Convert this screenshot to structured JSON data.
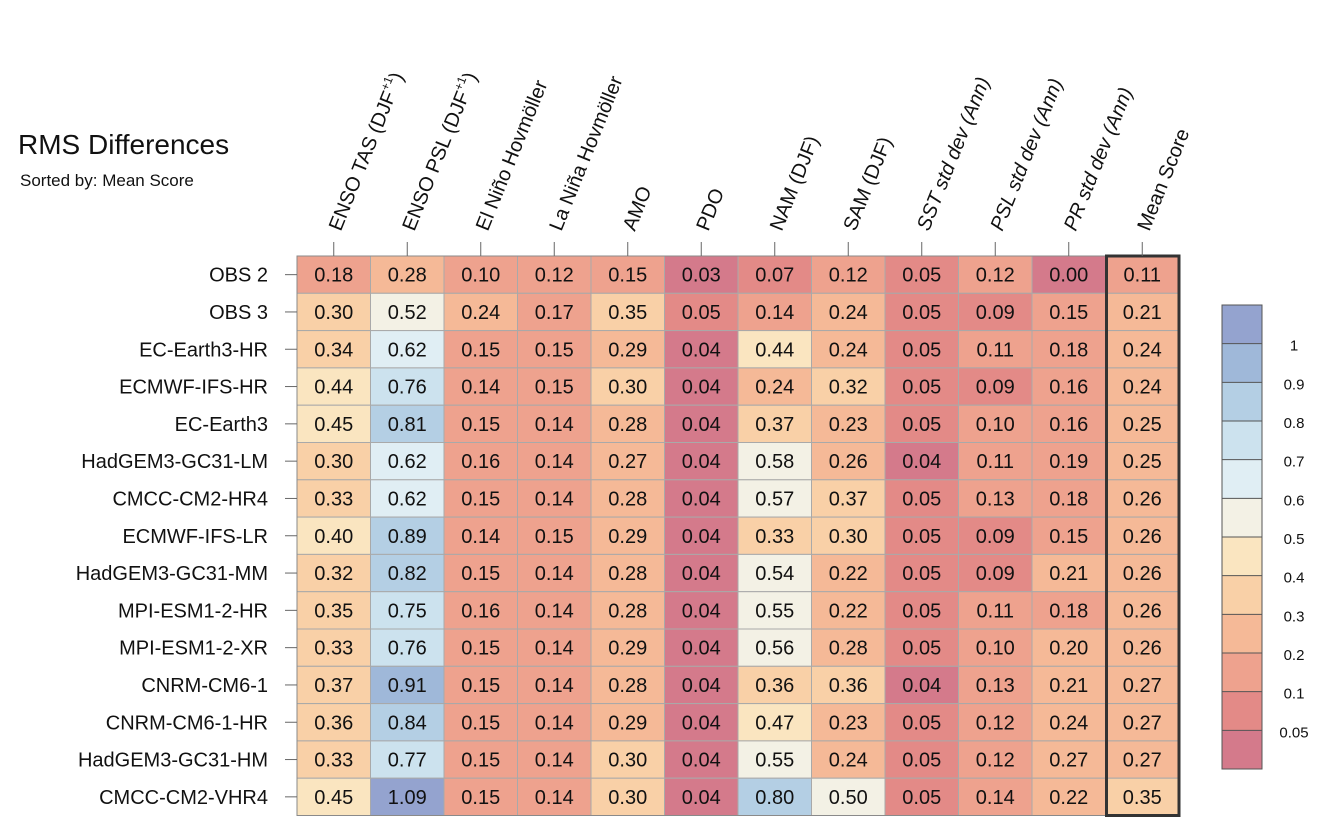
{
  "chart_data": {
    "type": "heatmap",
    "title": "RMS Differences",
    "subtitle": "Sorted by: Mean Score",
    "columns": [
      "ENSO TAS (DJF+1)",
      "ENSO PSL (DJF+1)",
      "El Niño Hovmöller",
      "La Niña Hovmöller",
      "AMO",
      "PDO",
      "NAM (DJF)",
      "SAM (DJF)",
      "SST std dev (Ann)",
      "PSL std dev (Ann)",
      "PR std dev (Ann)",
      "Mean Score"
    ],
    "column_labels": [
      {
        "main": "ENSO TAS (DJF",
        "sup": "+1",
        "end": ")",
        "italic": false
      },
      {
        "main": "ENSO PSL (DJF",
        "sup": "+1",
        "end": ")",
        "italic": false
      },
      {
        "main": "El Niño Hovmöller",
        "sup": "",
        "end": "",
        "italic": false
      },
      {
        "main": "La Niña Hovmöller",
        "sup": "",
        "end": "",
        "italic": false
      },
      {
        "main": "AMO",
        "sup": "",
        "end": "",
        "italic": false
      },
      {
        "main": "PDO",
        "sup": "",
        "end": "",
        "italic": false
      },
      {
        "main": "NAM (DJF)",
        "sup": "",
        "end": "",
        "italic": false
      },
      {
        "main": "SAM (DJF)",
        "sup": "",
        "end": "",
        "italic": false
      },
      {
        "main": "SST std dev (Ann)",
        "sup": "",
        "end": "",
        "italic": true
      },
      {
        "main": "PSL std dev (Ann)",
        "sup": "",
        "end": "",
        "italic": true
      },
      {
        "main": "PR std dev (Ann)",
        "sup": "",
        "end": "",
        "italic": true
      },
      {
        "main": "Mean Score",
        "sup": "",
        "end": "",
        "italic": false
      }
    ],
    "rows": [
      "OBS 2",
      "OBS 3",
      "EC-Earth3-HR",
      "ECMWF-IFS-HR",
      "EC-Earth3",
      "HadGEM3-GC31-LM",
      "CMCC-CM2-HR4",
      "ECMWF-IFS-LR",
      "HadGEM3-GC31-MM",
      "MPI-ESM1-2-HR",
      "MPI-ESM1-2-XR",
      "CNRM-CM6-1",
      "CNRM-CM6-1-HR",
      "HadGEM3-GC31-HM",
      "CMCC-CM2-VHR4"
    ],
    "values": [
      [
        0.18,
        0.28,
        0.1,
        0.12,
        0.15,
        0.03,
        0.07,
        0.12,
        0.05,
        0.12,
        0.0,
        0.11
      ],
      [
        0.3,
        0.52,
        0.24,
        0.17,
        0.35,
        0.05,
        0.14,
        0.24,
        0.05,
        0.09,
        0.15,
        0.21
      ],
      [
        0.34,
        0.62,
        0.15,
        0.15,
        0.29,
        0.04,
        0.44,
        0.24,
        0.05,
        0.11,
        0.18,
        0.24
      ],
      [
        0.44,
        0.76,
        0.14,
        0.15,
        0.3,
        0.04,
        0.24,
        0.32,
        0.05,
        0.09,
        0.16,
        0.24
      ],
      [
        0.45,
        0.81,
        0.15,
        0.14,
        0.28,
        0.04,
        0.37,
        0.23,
        0.05,
        0.1,
        0.16,
        0.25
      ],
      [
        0.3,
        0.62,
        0.16,
        0.14,
        0.27,
        0.04,
        0.58,
        0.26,
        0.04,
        0.11,
        0.19,
        0.25
      ],
      [
        0.33,
        0.62,
        0.15,
        0.14,
        0.28,
        0.04,
        0.57,
        0.37,
        0.05,
        0.13,
        0.18,
        0.26
      ],
      [
        0.4,
        0.89,
        0.14,
        0.15,
        0.29,
        0.04,
        0.33,
        0.3,
        0.05,
        0.09,
        0.15,
        0.26
      ],
      [
        0.32,
        0.82,
        0.15,
        0.14,
        0.28,
        0.04,
        0.54,
        0.22,
        0.05,
        0.09,
        0.21,
        0.26
      ],
      [
        0.35,
        0.75,
        0.16,
        0.14,
        0.28,
        0.04,
        0.55,
        0.22,
        0.05,
        0.11,
        0.18,
        0.26
      ],
      [
        0.33,
        0.76,
        0.15,
        0.14,
        0.29,
        0.04,
        0.56,
        0.28,
        0.05,
        0.1,
        0.2,
        0.26
      ],
      [
        0.37,
        0.91,
        0.15,
        0.14,
        0.28,
        0.04,
        0.36,
        0.36,
        0.04,
        0.13,
        0.21,
        0.27
      ],
      [
        0.36,
        0.84,
        0.15,
        0.14,
        0.29,
        0.04,
        0.47,
        0.23,
        0.05,
        0.12,
        0.24,
        0.27
      ],
      [
        0.33,
        0.77,
        0.15,
        0.14,
        0.3,
        0.04,
        0.55,
        0.24,
        0.05,
        0.12,
        0.27,
        0.27
      ],
      [
        0.45,
        1.09,
        0.15,
        0.14,
        0.3,
        0.04,
        0.8,
        0.5,
        0.05,
        0.14,
        0.22,
        0.35
      ]
    ],
    "colorbar": {
      "boundaries": [
        0.05,
        0.1,
        0.2,
        0.3,
        0.4,
        0.5,
        0.6,
        0.7,
        0.8,
        0.9,
        1
      ],
      "tick_labels": [
        "0.05",
        "0.1",
        "0.2",
        "0.3",
        "0.4",
        "0.5",
        "0.6",
        "0.7",
        "0.8",
        "0.9",
        "1"
      ],
      "colors": [
        "#d47a8b",
        "#e38a87",
        "#eea28e",
        "#f5b997",
        "#f9d0a7",
        "#fae5c0",
        "#f3f1e5",
        "#e0eef4",
        "#cce2ee",
        "#b4cfe4",
        "#9fb8d9",
        "#94a3cf"
      ]
    },
    "highlighted_column": "Mean Score"
  }
}
